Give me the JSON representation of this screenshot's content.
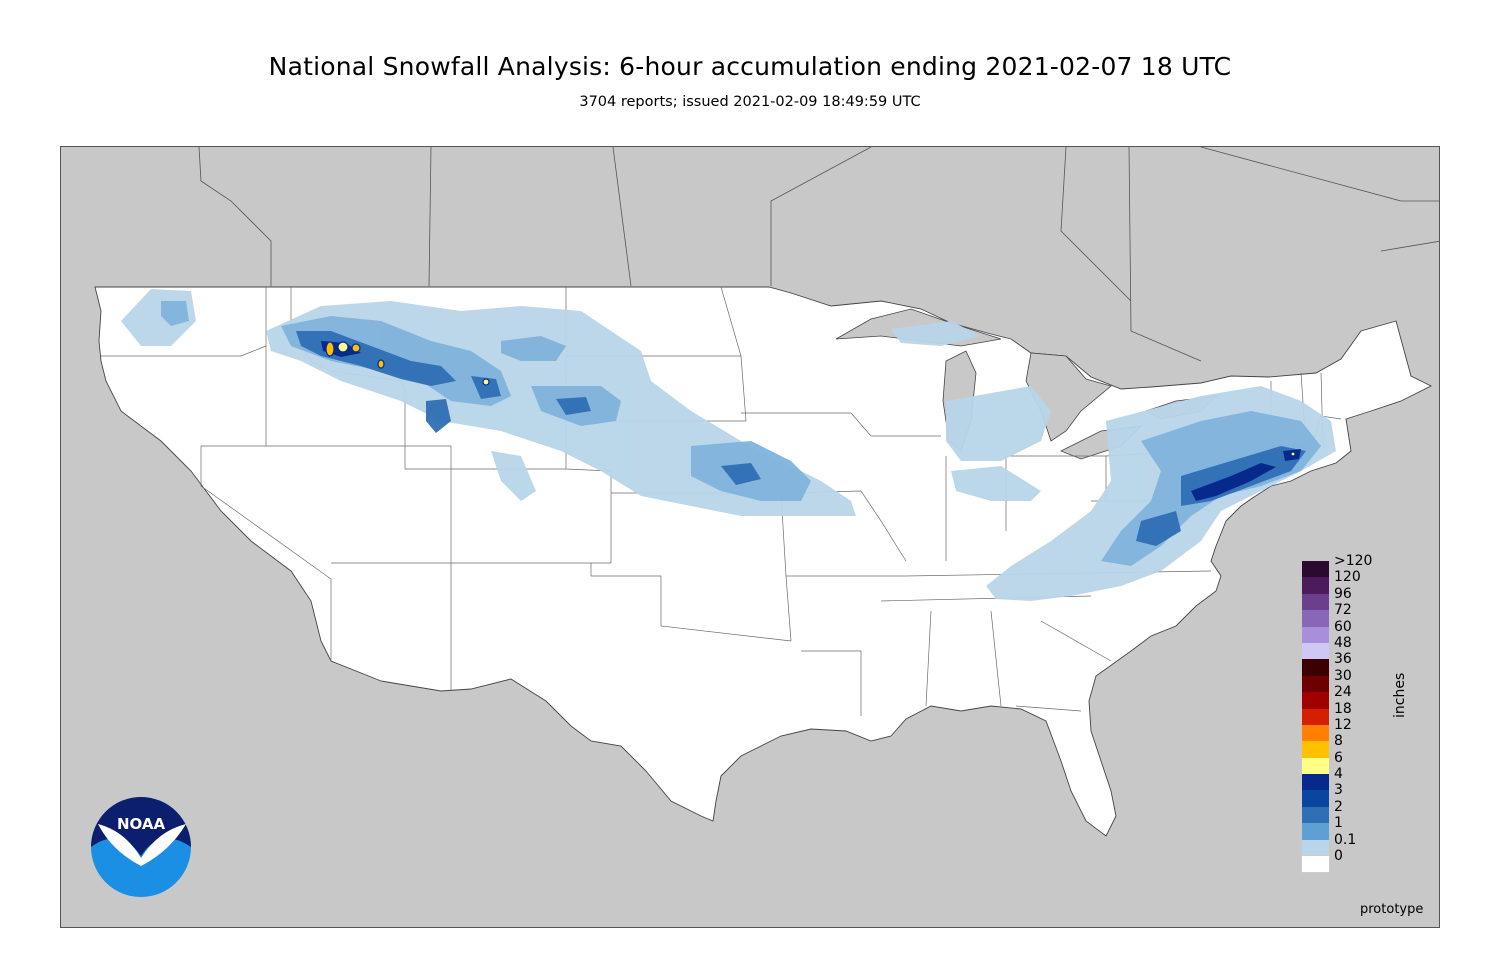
{
  "header": {
    "title": "National Snowfall Analysis: 6-hour accumulation ending 2021-02-07 18 UTC",
    "subtitle": "3704 reports; issued 2021-02-09 18:49:59 UTC"
  },
  "map": {
    "background_color": "#c8c8c8",
    "land_color": "#ffffff",
    "logo_text": "NOAA",
    "prototype_label": "prototype"
  },
  "legend": {
    "units": "inches",
    "levels": [
      {
        "label": ">120",
        "color": "#2a0a2e"
      },
      {
        "label": "120",
        "color": "#4d1a5c"
      },
      {
        "label": "96",
        "color": "#6b3f8e"
      },
      {
        "label": "72",
        "color": "#8a66b8"
      },
      {
        "label": "60",
        "color": "#a98fd9"
      },
      {
        "label": "48",
        "color": "#cfc8f5"
      },
      {
        "label": "36",
        "color": "#3d0000"
      },
      {
        "label": "30",
        "color": "#6e0000"
      },
      {
        "label": "24",
        "color": "#a10000"
      },
      {
        "label": "18",
        "color": "#d42000"
      },
      {
        "label": "12",
        "color": "#ff7f00"
      },
      {
        "label": "8",
        "color": "#ffc000"
      },
      {
        "label": "6",
        "color": "#ffff88"
      },
      {
        "label": "4",
        "color": "#08298c"
      },
      {
        "label": "3",
        "color": "#0a46a0"
      },
      {
        "label": "2",
        "color": "#2f6fb5"
      },
      {
        "label": "1",
        "color": "#5fa0d4"
      },
      {
        "label": "0.1",
        "color": "#b8d5e9"
      },
      {
        "label": "0",
        "color": "#ffffff"
      }
    ]
  }
}
